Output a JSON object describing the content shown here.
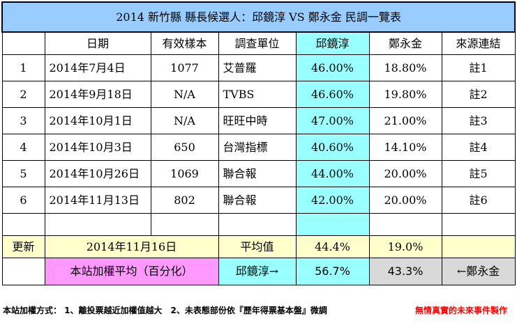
{
  "title": "2014 新竹縣 縣長候選人：邱鏡淳 VS 鄭永金 民調一覽表",
  "headers": [
    "日期",
    "有效樣本",
    "調查單位",
    "邱鏡淳",
    "鄭永金",
    "來源連結"
  ],
  "rows": [
    {
      "no": "1",
      "date": "2014年7月4日",
      "sample": "1077",
      "org": "艾普羅",
      "qiu": "46.00%",
      "zheng": "18.80%",
      "src": "註1"
    },
    {
      "no": "2",
      "date": "2014年9月18日",
      "sample": "N/A",
      "org": "TVBS",
      "qiu": "46.60%",
      "zheng": "19.80%",
      "src": "註2"
    },
    {
      "no": "3",
      "date": "2014年10月1日",
      "sample": "N/A",
      "org": "旺旺中時",
      "qiu": "47.00%",
      "zheng": "21.00%",
      "src": "註3"
    },
    {
      "no": "4",
      "date": "2014年10月3日",
      "sample": "650",
      "org": "台灣指標",
      "qiu": "40.60%",
      "zheng": "14.10%",
      "src": "註4"
    },
    {
      "no": "5",
      "date": "2014年10月26日",
      "sample": "1069",
      "org": "聯合報",
      "qiu": "44.00%",
      "zheng": "20.00%",
      "src": "註5"
    },
    {
      "no": "6",
      "date": "2014年11月13日",
      "sample": "802",
      "org": "聯合報",
      "qiu": "42.00%",
      "zheng": "20.00%",
      "src": "註6"
    }
  ],
  "summary": {
    "update_label": "更新",
    "update_date": "2014年11月16日",
    "avg_label": "平均值",
    "avg_qiu": "44.4%",
    "avg_zheng": "19.0%"
  },
  "weighted": {
    "label": "本站加權平均（百分化）",
    "qiu_label": "邱鏡淳→",
    "qiu_value": "56.7%",
    "zheng_value": "43.3%",
    "zheng_label": "←鄭永金"
  },
  "footer": {
    "method": "本站加權方式： 1、離投票越近加權值越大　2、未表態部份依『歷年得票基本盤』微調",
    "credit": "無情真實的未來事件製作"
  },
  "colors": {
    "title_bg": "#99ccff",
    "qiu_col": "#99ffff",
    "date_bg": "#ffffcc",
    "weighted_label_bg": "#ff99ff",
    "zheng_weighted_bg": "#d9d9d9",
    "credit": "#ff0000"
  }
}
